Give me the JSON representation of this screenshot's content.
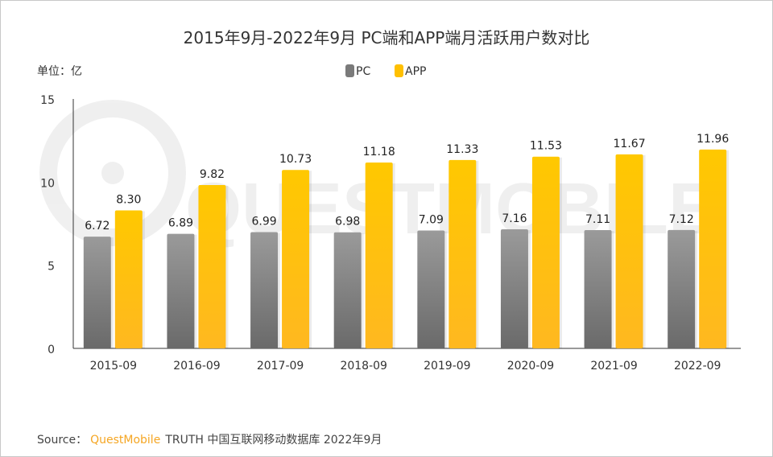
{
  "chart_data": {
    "type": "bar",
    "title": "2015年9月-2022年9月 PC端和APP端月活跃用户数对比",
    "unit_label": "单位：亿",
    "categories": [
      "2015-09",
      "2016-09",
      "2017-09",
      "2018-09",
      "2019-09",
      "2020-09",
      "2021-09",
      "2022-09"
    ],
    "series": [
      {
        "name": "PC",
        "color": "#7a7a7a",
        "values": [
          6.72,
          6.89,
          6.99,
          6.98,
          7.09,
          7.16,
          7.11,
          7.12
        ]
      },
      {
        "name": "APP",
        "color": "#ffc000",
        "values": [
          8.3,
          9.82,
          10.73,
          11.18,
          11.33,
          11.53,
          11.67,
          11.96
        ]
      }
    ],
    "ylim": [
      0,
      15
    ],
    "yticks": [
      0,
      5,
      10,
      15
    ],
    "grid": false,
    "legend_placement": "top-center",
    "data_labels": true
  },
  "source": {
    "prefix": "Source：",
    "brand": "QuestMobile",
    "brand_color": "#f5a623",
    "rest": "TRUTH 中国互联网移动数据库 2022年9月"
  },
  "watermark": "QUESTMOBILE"
}
